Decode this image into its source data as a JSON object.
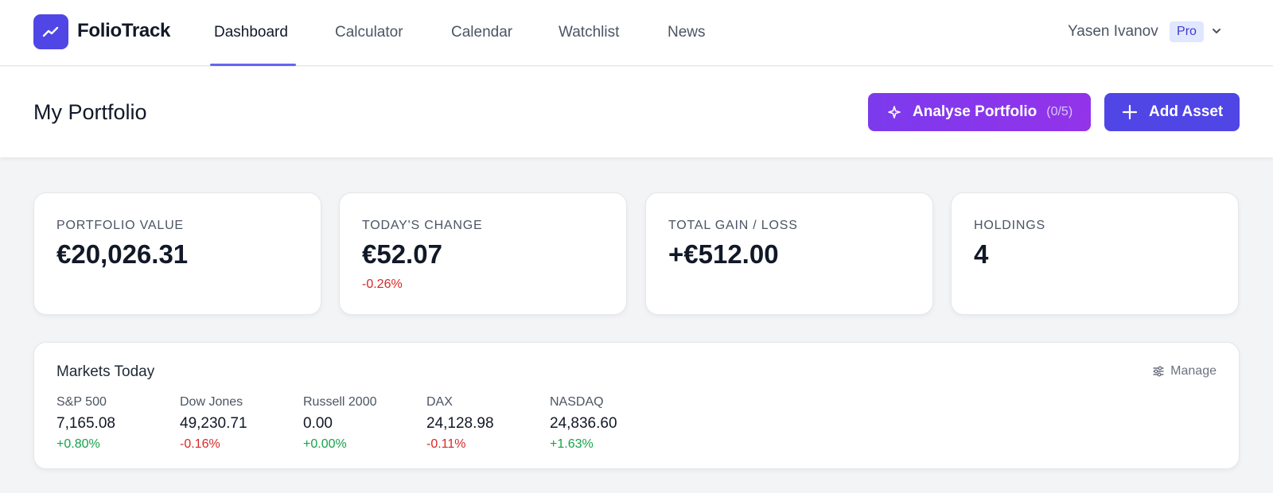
{
  "app": {
    "name": "FolioTrack"
  },
  "nav": {
    "items": [
      {
        "label": "Dashboard",
        "active": true
      },
      {
        "label": "Calculator",
        "active": false
      },
      {
        "label": "Calendar",
        "active": false
      },
      {
        "label": "Watchlist",
        "active": false
      },
      {
        "label": "News",
        "active": false
      }
    ]
  },
  "user": {
    "name": "Yasen Ivanov",
    "plan": "Pro"
  },
  "header": {
    "title": "My Portfolio",
    "analyse_label": "Analyse Portfolio",
    "analyse_count": "(0/5)",
    "add_label": "Add Asset"
  },
  "stats": [
    {
      "label": "PORTFOLIO VALUE",
      "value": "€20,026.31",
      "sub": ""
    },
    {
      "label": "TODAY'S CHANGE",
      "value": "€52.07",
      "sub": "-0.26%"
    },
    {
      "label": "TOTAL GAIN / LOSS",
      "value": "+€512.00",
      "sub": ""
    },
    {
      "label": "HOLDINGS",
      "value": "4",
      "sub": ""
    }
  ],
  "markets": {
    "title": "Markets Today",
    "manage_label": "Manage",
    "indices": [
      {
        "name": "S&P 500",
        "value": "7,165.08",
        "change": "+0.80%",
        "direction": "up"
      },
      {
        "name": "Dow Jones",
        "value": "49,230.71",
        "change": "-0.16%",
        "direction": "down"
      },
      {
        "name": "Russell 2000",
        "value": "0.00",
        "change": "+0.00%",
        "direction": "up"
      },
      {
        "name": "DAX",
        "value": "24,128.98",
        "change": "-0.11%",
        "direction": "down"
      },
      {
        "name": "NASDAQ",
        "value": "24,836.60",
        "change": "+1.63%",
        "direction": "up"
      }
    ]
  },
  "colors": {
    "brand": "#4f46e5",
    "analyse": "#7c3aed",
    "positive": "#16a34a",
    "negative": "#dc2626"
  },
  "icons": {
    "logo": "trend-line-icon",
    "analyse": "sparkle-icon",
    "add": "plus-icon",
    "user_menu": "chevron-down-icon",
    "manage": "sliders-icon"
  }
}
